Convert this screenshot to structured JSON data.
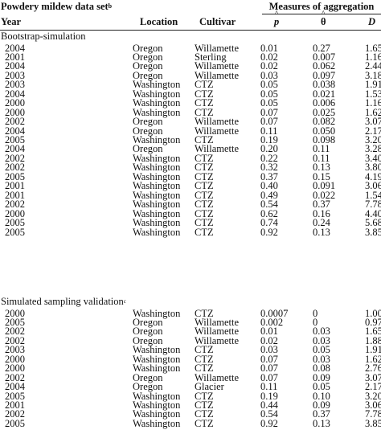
{
  "header": {
    "dataset_title": "Powdery mildew data set",
    "dataset_sup": "b",
    "measures_title": "Measures of aggregation",
    "col_year": "Year",
    "col_location": "Location",
    "col_cultivar": "Cultivar",
    "col_p": "p",
    "col_theta": "θ",
    "col_d": "D"
  },
  "sections": [
    {
      "title": "Bootstrap-simulation",
      "title_sup": "",
      "rows": [
        {
          "year": "2004",
          "location": "Oregon",
          "cultivar": "Willamette",
          "p": "0.01",
          "theta": "0.27",
          "d": "1.65"
        },
        {
          "year": "2001",
          "location": "Oregon",
          "cultivar": "Sterling",
          "p": "0.02",
          "theta": "0.007",
          "d": "1.16"
        },
        {
          "year": "2004",
          "location": "Oregon",
          "cultivar": "Willamette",
          "p": "0.02",
          "theta": "0.062",
          "d": "2.44"
        },
        {
          "year": "2003",
          "location": "Oregon",
          "cultivar": "Willamette",
          "p": "0.03",
          "theta": "0.097",
          "d": "3.18"
        },
        {
          "year": "2003",
          "location": "Washington",
          "cultivar": "CTZ",
          "p": "0.05",
          "theta": "0.038",
          "d": "1.91"
        },
        {
          "year": "2004",
          "location": "Washington",
          "cultivar": "CTZ",
          "p": "0.05",
          "theta": "0.021",
          "d": "1.53"
        },
        {
          "year": "2000",
          "location": "Washington",
          "cultivar": "CTZ",
          "p": "0.05",
          "theta": "0.006",
          "d": "1.16"
        },
        {
          "year": "2000",
          "location": "Washington",
          "cultivar": "CTZ",
          "p": "0.07",
          "theta": "0.025",
          "d": "1.62"
        },
        {
          "year": "2002",
          "location": "Oregon",
          "cultivar": "Willamette",
          "p": "0.07",
          "theta": "0.082",
          "d": "3.07"
        },
        {
          "year": "2004",
          "location": "Oregon",
          "cultivar": "Willamette",
          "p": "0.11",
          "theta": "0.050",
          "d": "2.17"
        },
        {
          "year": "2005",
          "location": "Washington",
          "cultivar": "CTZ",
          "p": "0.19",
          "theta": "0.098",
          "d": "3.20"
        },
        {
          "year": "2004",
          "location": "Oregon",
          "cultivar": "Willamette",
          "p": "0.20",
          "theta": "0.11",
          "d": "3.28"
        },
        {
          "year": "2002",
          "location": "Washington",
          "cultivar": "CTZ",
          "p": "0.22",
          "theta": "0.11",
          "d": "3.40"
        },
        {
          "year": "2002",
          "location": "Washington",
          "cultivar": "CTZ",
          "p": "0.32",
          "theta": "0.13",
          "d": "3.80"
        },
        {
          "year": "2005",
          "location": "Washington",
          "cultivar": "CTZ",
          "p": "0.37",
          "theta": "0.15",
          "d": "4.19"
        },
        {
          "year": "2001",
          "location": "Washington",
          "cultivar": "CTZ",
          "p": "0.40",
          "theta": "0.091",
          "d": "3.06"
        },
        {
          "year": "2001",
          "location": "Washington",
          "cultivar": "CTZ",
          "p": "0.49",
          "theta": "0.022",
          "d": "1.54"
        },
        {
          "year": "2002",
          "location": "Washington",
          "cultivar": "CTZ",
          "p": "0.54",
          "theta": "0.37",
          "d": "7.78"
        },
        {
          "year": "2000",
          "location": "Washington",
          "cultivar": "CTZ",
          "p": "0.62",
          "theta": "0.16",
          "d": "4.40"
        },
        {
          "year": "2005",
          "location": "Washington",
          "cultivar": "CTZ",
          "p": "0.74",
          "theta": "0.24",
          "d": "5.68"
        },
        {
          "year": "2005",
          "location": "Washington",
          "cultivar": "CTZ",
          "p": "0.92",
          "theta": "0.13",
          "d": "3.85"
        }
      ]
    },
    {
      "title": "Simulated sampling validation",
      "title_sup": "c",
      "rows": [
        {
          "year": "2000",
          "location": "Washington",
          "cultivar": "CTZ",
          "p": "0.0007",
          "theta": "0",
          "d": "1.00"
        },
        {
          "year": "2005",
          "location": "Oregon",
          "cultivar": "Willamette",
          "p": "0.002",
          "theta": "0",
          "d": "0.97"
        },
        {
          "year": "2002",
          "location": "Oregon",
          "cultivar": "Willamette",
          "p": "0.01",
          "theta": "0.03",
          "d": "1.65"
        },
        {
          "year": "2002",
          "location": "Oregon",
          "cultivar": "Willamette",
          "p": "0.02",
          "theta": "0.03",
          "d": "1.88"
        },
        {
          "year": "2003",
          "location": "Washington",
          "cultivar": "CTZ",
          "p": "0.03",
          "theta": "0.05",
          "d": "1.91"
        },
        {
          "year": "2000",
          "location": "Washington",
          "cultivar": "CTZ",
          "p": "0.07",
          "theta": "0.03",
          "d": "1.62"
        },
        {
          "year": "2000",
          "location": "Washington",
          "cultivar": "CTZ",
          "p": "0.07",
          "theta": "0.08",
          "d": "2.76"
        },
        {
          "year": "2002",
          "location": "Oregon",
          "cultivar": "Willamette",
          "p": "0.07",
          "theta": "0.09",
          "d": "3.07"
        },
        {
          "year": "2004",
          "location": "Oregon",
          "cultivar": "Glacier",
          "p": "0.11",
          "theta": "0.05",
          "d": "2.17"
        },
        {
          "year": "2005",
          "location": "Washington",
          "cultivar": "CTZ",
          "p": "0.19",
          "theta": "0.10",
          "d": "3.20"
        },
        {
          "year": "2001",
          "location": "Washington",
          "cultivar": "CTZ",
          "p": "0.44",
          "theta": "0.09",
          "d": "3.06"
        },
        {
          "year": "2002",
          "location": "Washington",
          "cultivar": "CTZ",
          "p": "0.54",
          "theta": "0.37",
          "d": "7.78"
        },
        {
          "year": "2005",
          "location": "Washington",
          "cultivar": "CTZ",
          "p": "0.92",
          "theta": "0.13",
          "d": "3.85"
        }
      ]
    }
  ]
}
